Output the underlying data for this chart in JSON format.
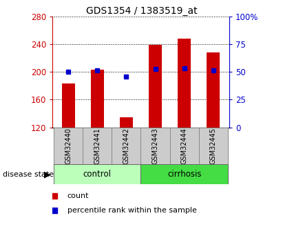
{
  "title": "GDS1354 / 1383519_at",
  "samples": [
    "GSM32440",
    "GSM32441",
    "GSM32442",
    "GSM32443",
    "GSM32444",
    "GSM32445"
  ],
  "bar_values": [
    183,
    203,
    135,
    239,
    248,
    228
  ],
  "bar_baseline": 120,
  "percentile_values": [
    200,
    202,
    193,
    204,
    205,
    202
  ],
  "groups": [
    {
      "label": "control",
      "indices": [
        0,
        1,
        2
      ],
      "color": "#bbffbb"
    },
    {
      "label": "cirrhosis",
      "indices": [
        3,
        4,
        5
      ],
      "color": "#44dd44"
    }
  ],
  "ylim_left": [
    120,
    280
  ],
  "ylim_right": [
    0,
    100
  ],
  "yticks_left": [
    120,
    160,
    200,
    240,
    280
  ],
  "yticks_right": [
    0,
    25,
    50,
    75,
    100
  ],
  "bar_color": "#cc0000",
  "percentile_color": "#0000cc",
  "bg_color": "#ffffff",
  "plot_bg_color": "#ffffff",
  "tick_label_color_left": "#cc0000",
  "tick_label_color_right": "#0000cc",
  "bar_width": 0.45,
  "disease_state_label": "disease state",
  "legend_count_label": "count",
  "legend_percentile_label": "percentile rank within the sample",
  "x_label_box_color": "#cccccc"
}
